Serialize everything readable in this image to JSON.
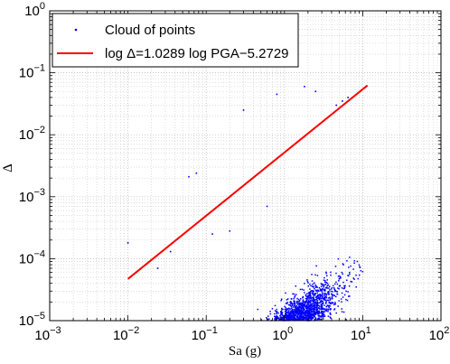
{
  "chart_data": {
    "type": "scatter",
    "xscale": "log",
    "yscale": "log",
    "xlim": [
      0.001,
      100
    ],
    "ylim": [
      1e-05,
      1
    ],
    "xlabel": "Sa (g)",
    "ylabel": "Δ",
    "grid": true,
    "legend_position": "top-left",
    "xtick_values": [
      0.001,
      0.01,
      0.1,
      1,
      10,
      100
    ],
    "ytick_values": [
      1e-05,
      0.0001,
      0.001,
      0.01,
      0.1,
      1
    ],
    "xtick_labels": [
      {
        "base": "10",
        "exp": "−3"
      },
      {
        "base": "10",
        "exp": "−2"
      },
      {
        "base": "10",
        "exp": "−1"
      },
      {
        "base": "10",
        "exp": "0"
      },
      {
        "base": "10",
        "exp": "1"
      },
      {
        "base": "10",
        "exp": "2"
      }
    ],
    "ytick_labels": [
      {
        "base": "10",
        "exp": "−5"
      },
      {
        "base": "10",
        "exp": "−4"
      },
      {
        "base": "10",
        "exp": "−3"
      },
      {
        "base": "10",
        "exp": "−2"
      },
      {
        "base": "10",
        "exp": "−1"
      },
      {
        "base": "10",
        "exp": "0"
      }
    ],
    "series": [
      {
        "name": "Cloud of points",
        "kind": "scatter",
        "color": "#0000ff",
        "description_of_cloud": {
          "approx_count": 10000,
          "x_range": [
            0.02,
            10
          ],
          "y_center_relation": {
            "slope": 1.0289,
            "intercept": -5.2729
          },
          "log10_spread_y": 0.25
        },
        "outliers": [
          {
            "x": 0.01,
            "y": 0.00018
          },
          {
            "x": 0.024,
            "y": 7e-05
          },
          {
            "x": 0.035,
            "y": 0.00013
          },
          {
            "x": 0.075,
            "y": 0.0024
          },
          {
            "x": 0.06,
            "y": 0.0021
          },
          {
            "x": 0.3,
            "y": 0.025
          },
          {
            "x": 0.8,
            "y": 0.045
          },
          {
            "x": 1.8,
            "y": 0.06
          },
          {
            "x": 2.5,
            "y": 0.05
          },
          {
            "x": 4.6,
            "y": 0.03
          },
          {
            "x": 5.5,
            "y": 0.035
          },
          {
            "x": 6.5,
            "y": 0.04
          },
          {
            "x": 0.12,
            "y": 0.00025
          },
          {
            "x": 0.2,
            "y": 0.00028
          },
          {
            "x": 0.6,
            "y": 0.0007
          }
        ]
      },
      {
        "name": "log Δ=1.0289 log PGA−5.2729",
        "kind": "line",
        "color": "#ff0000",
        "x": [
          0.01,
          11.5
        ],
        "y": [
          4.71e-05,
          0.0626
        ]
      }
    ]
  }
}
